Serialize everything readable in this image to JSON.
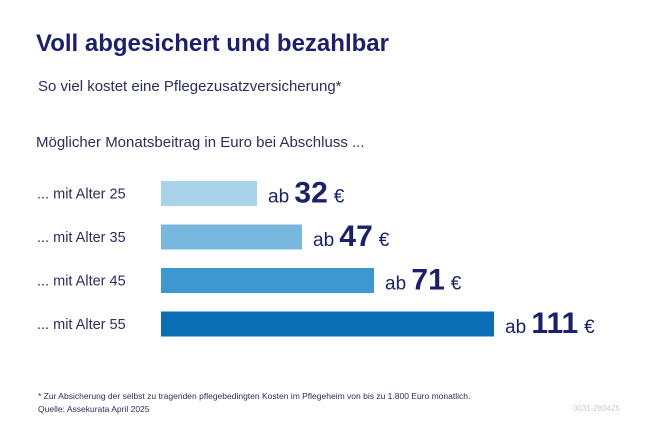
{
  "header": {
    "title": "Voll abgesichert und bezahlbar",
    "subtitle": "So viel kostet eine Pflegezusatzversicherung*",
    "caption": "Möglicher Monatsbeitrag in Euro bei Abschluss ..."
  },
  "chart_data": {
    "type": "bar",
    "orientation": "horizontal",
    "categories": [
      "... mit Alter 25",
      "... mit Alter 35",
      "... mit Alter 45",
      "... mit Alter 55"
    ],
    "values": [
      32,
      47,
      71,
      111
    ],
    "value_prefix": "ab",
    "value_unit": "€",
    "colors": [
      "#a9d3ea",
      "#79b8de",
      "#3d98cf",
      "#0a6eb4"
    ]
  },
  "footer": {
    "footnote": "* Zur Absicherung der selbst zu tragenden pflegebedingten Kosten im Pflegeheim von bis zu 1.800 Euro monatlich.",
    "source": "Quelle: Assekurata April 2025",
    "code": "0031-280425"
  },
  "colors": {
    "title": "#1a1f6e",
    "text": "#2a2f5e"
  }
}
